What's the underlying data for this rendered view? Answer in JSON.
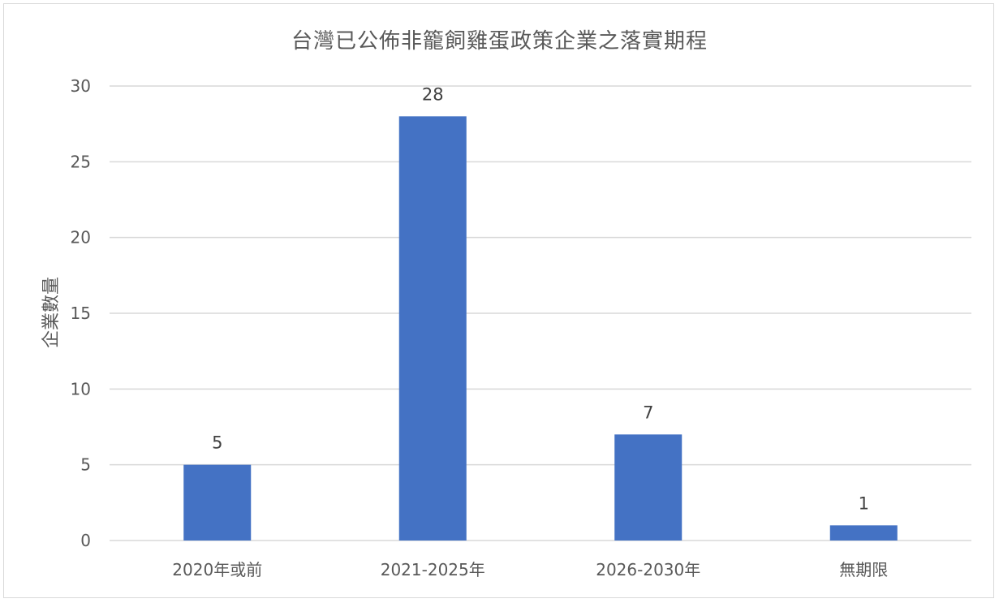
{
  "chart_data": {
    "type": "bar",
    "title": "台灣已公佈非籠飼雞蛋政策企業之落實期程",
    "xlabel": "",
    "ylabel": "企業數量",
    "categories": [
      "2020年或前",
      "2021-2025年",
      "2026-2030年",
      "無期限"
    ],
    "values": [
      5,
      28,
      7,
      1
    ],
    "ylim": [
      0,
      30
    ],
    "yticks": [
      0,
      5,
      10,
      15,
      20,
      25,
      30
    ],
    "grid": true,
    "legend": "none",
    "data_labels": true,
    "bar_color": "#4472C4",
    "grid_color": "#d9d9d9"
  }
}
